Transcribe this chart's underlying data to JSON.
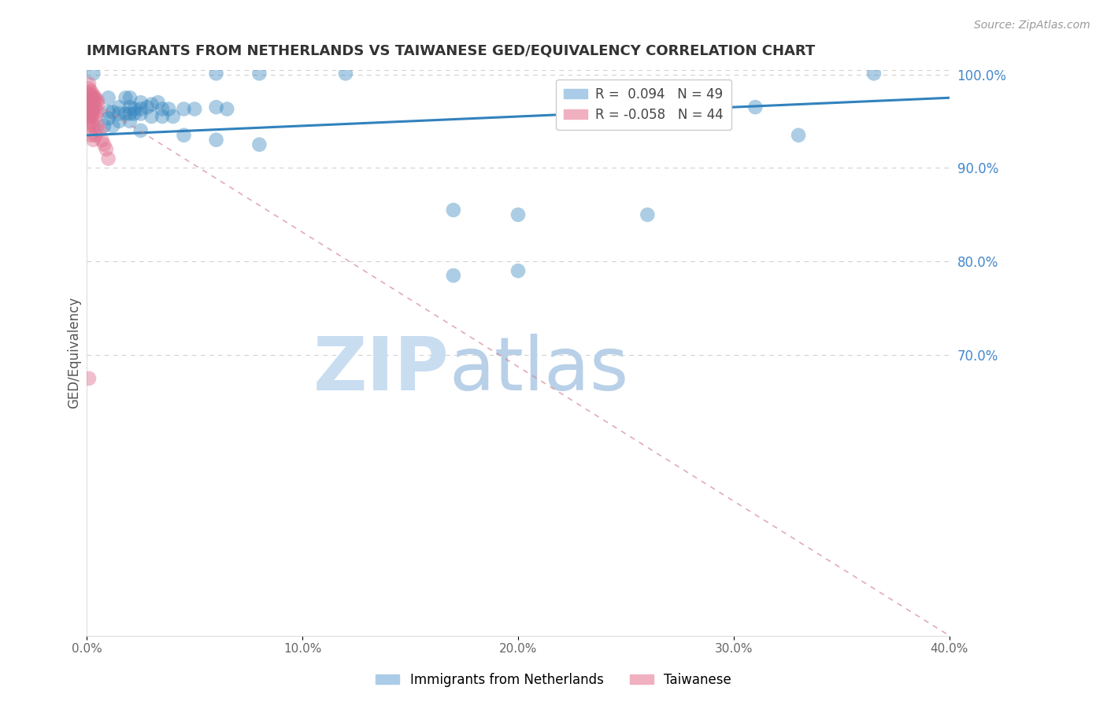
{
  "title": "IMMIGRANTS FROM NETHERLANDS VS TAIWANESE GED/EQUIVALENCY CORRELATION CHART",
  "source": "Source: ZipAtlas.com",
  "ylabel": "GED/Equivalency",
  "xlim": [
    0.0,
    0.4
  ],
  "ylim": [
    0.4,
    1.005
  ],
  "xtick_labels": [
    "0.0%",
    "10.0%",
    "20.0%",
    "30.0%",
    "40.0%"
  ],
  "xtick_vals": [
    0.0,
    0.1,
    0.2,
    0.3,
    0.4
  ],
  "ytick_right_labels": [
    "100.0%",
    "90.0%",
    "80.0%",
    "70.0%"
  ],
  "ytick_right_vals": [
    1.0,
    0.9,
    0.8,
    0.7
  ],
  "blue_R": 0.094,
  "pink_R": -0.058,
  "watermark": "ZIPatlas",
  "watermark_color": "#cce0f5",
  "blue_line_x": [
    0.0,
    0.4
  ],
  "blue_line_y": [
    0.935,
    0.975
  ],
  "pink_line_x": [
    0.0,
    0.4
  ],
  "pink_line_y": [
    0.975,
    0.4
  ],
  "blue_scatter": [
    [
      0.003,
      1.001
    ],
    [
      0.06,
      1.001
    ],
    [
      0.08,
      1.001
    ],
    [
      0.12,
      1.001
    ],
    [
      0.01,
      0.975
    ],
    [
      0.018,
      0.975
    ],
    [
      0.02,
      0.975
    ],
    [
      0.025,
      0.97
    ],
    [
      0.03,
      0.968
    ],
    [
      0.033,
      0.97
    ],
    [
      0.015,
      0.965
    ],
    [
      0.02,
      0.965
    ],
    [
      0.022,
      0.963
    ],
    [
      0.025,
      0.963
    ],
    [
      0.028,
      0.965
    ],
    [
      0.035,
      0.963
    ],
    [
      0.038,
      0.963
    ],
    [
      0.045,
      0.963
    ],
    [
      0.05,
      0.963
    ],
    [
      0.06,
      0.965
    ],
    [
      0.065,
      0.963
    ],
    [
      0.01,
      0.96
    ],
    [
      0.012,
      0.96
    ],
    [
      0.015,
      0.958
    ],
    [
      0.018,
      0.958
    ],
    [
      0.02,
      0.958
    ],
    [
      0.022,
      0.958
    ],
    [
      0.025,
      0.958
    ],
    [
      0.03,
      0.955
    ],
    [
      0.035,
      0.955
    ],
    [
      0.04,
      0.955
    ],
    [
      0.01,
      0.953
    ],
    [
      0.015,
      0.95
    ],
    [
      0.02,
      0.95
    ],
    [
      0.008,
      0.945
    ],
    [
      0.012,
      0.945
    ],
    [
      0.025,
      0.94
    ],
    [
      0.045,
      0.935
    ],
    [
      0.06,
      0.93
    ],
    [
      0.08,
      0.925
    ],
    [
      0.17,
      0.855
    ],
    [
      0.2,
      0.85
    ],
    [
      0.2,
      0.79
    ],
    [
      0.17,
      0.785
    ],
    [
      0.26,
      0.85
    ],
    [
      0.26,
      0.965
    ],
    [
      0.31,
      0.965
    ],
    [
      0.365,
      1.001
    ],
    [
      0.33,
      0.935
    ]
  ],
  "pink_scatter": [
    [
      0.001,
      0.99
    ],
    [
      0.001,
      0.985
    ],
    [
      0.001,
      0.98
    ],
    [
      0.002,
      0.982
    ],
    [
      0.002,
      0.978
    ],
    [
      0.002,
      0.975
    ],
    [
      0.003,
      0.978
    ],
    [
      0.003,
      0.975
    ],
    [
      0.003,
      0.972
    ],
    [
      0.004,
      0.975
    ],
    [
      0.004,
      0.972
    ],
    [
      0.005,
      0.972
    ],
    [
      0.005,
      0.968
    ],
    [
      0.001,
      0.972
    ],
    [
      0.001,
      0.968
    ],
    [
      0.001,
      0.965
    ],
    [
      0.002,
      0.97
    ],
    [
      0.002,
      0.965
    ],
    [
      0.002,
      0.962
    ],
    [
      0.003,
      0.965
    ],
    [
      0.003,
      0.962
    ],
    [
      0.004,
      0.965
    ],
    [
      0.005,
      0.96
    ],
    [
      0.001,
      0.96
    ],
    [
      0.001,
      0.955
    ],
    [
      0.002,
      0.958
    ],
    [
      0.002,
      0.955
    ],
    [
      0.003,
      0.958
    ],
    [
      0.004,
      0.955
    ],
    [
      0.001,
      0.95
    ],
    [
      0.001,
      0.945
    ],
    [
      0.002,
      0.948
    ],
    [
      0.003,
      0.945
    ],
    [
      0.005,
      0.945
    ],
    [
      0.006,
      0.94
    ],
    [
      0.007,
      0.93
    ],
    [
      0.008,
      0.925
    ],
    [
      0.009,
      0.92
    ],
    [
      0.01,
      0.91
    ],
    [
      0.002,
      0.935
    ],
    [
      0.003,
      0.93
    ],
    [
      0.004,
      0.935
    ],
    [
      0.001,
      0.675
    ]
  ],
  "blue_line_color": "#3182bd",
  "pink_line_color": "#d08090",
  "background_color": "#ffffff",
  "grid_color": "#cccccc",
  "title_color": "#333333",
  "right_tick_color": "#4488cc",
  "source_color": "#999999"
}
